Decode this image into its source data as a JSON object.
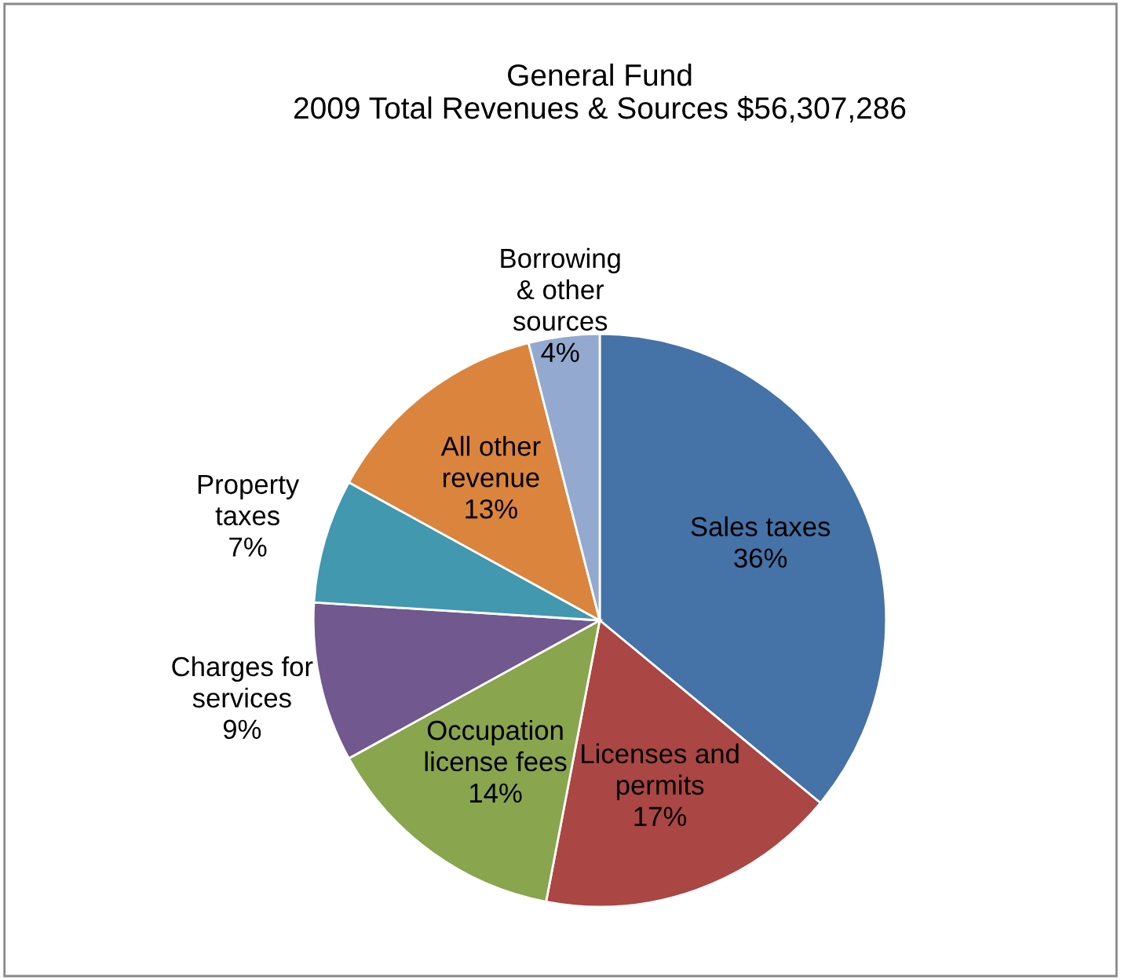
{
  "chart_data": {
    "type": "pie",
    "title": "General Fund\n2009 Total Revenues & Sources $56,307,286",
    "categories": [
      "Sales taxes",
      "Licenses and\npermits",
      "Occupation\nlicense fees",
      "Charges for\nservices",
      "Property\ntaxes",
      "All other\nrevenue",
      "Borrowing\n& other\nsources"
    ],
    "values": [
      36,
      17,
      14,
      9,
      7,
      13,
      4
    ],
    "value_labels": [
      "36%",
      "17%",
      "14%",
      "9%",
      "7%",
      "13%",
      "4%"
    ],
    "colors": [
      "#4572a7",
      "#aa4643",
      "#89a54e",
      "#71588f",
      "#4198af",
      "#db843d",
      "#93a9cf"
    ],
    "legend": false
  }
}
